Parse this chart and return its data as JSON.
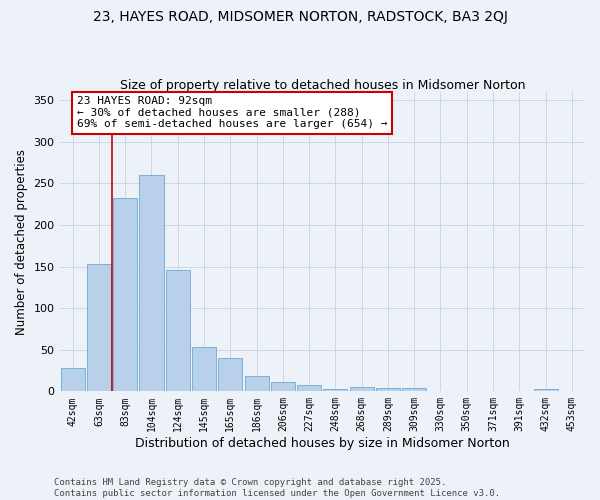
{
  "title": "23, HAYES ROAD, MIDSOMER NORTON, RADSTOCK, BA3 2QJ",
  "subtitle": "Size of property relative to detached houses in Midsomer Norton",
  "xlabel": "Distribution of detached houses by size in Midsomer Norton",
  "ylabel": "Number of detached properties",
  "footer": "Contains HM Land Registry data © Crown copyright and database right 2025.\nContains public sector information licensed under the Open Government Licence v3.0.",
  "categories": [
    "42sqm",
    "63sqm",
    "83sqm",
    "104sqm",
    "124sqm",
    "145sqm",
    "165sqm",
    "186sqm",
    "206sqm",
    "227sqm",
    "248sqm",
    "268sqm",
    "289sqm",
    "309sqm",
    "330sqm",
    "350sqm",
    "371sqm",
    "391sqm",
    "432sqm",
    "453sqm"
  ],
  "values": [
    28,
    153,
    233,
    260,
    146,
    53,
    40,
    18,
    11,
    8,
    3,
    5,
    4,
    4,
    0,
    0,
    0,
    0,
    3,
    0
  ],
  "bar_color": "#b8d0ea",
  "bar_edge_color": "#6aaad4",
  "grid_color": "#ccd6e8",
  "background_color": "#edf1f8",
  "annotation_text": "23 HAYES ROAD: 92sqm\n← 30% of detached houses are smaller (288)\n69% of semi-detached houses are larger (654) →",
  "vline_color": "#cc0000",
  "annotation_box_facecolor": "#ffffff",
  "annotation_box_edgecolor": "#cc0000",
  "ylim": [
    0,
    360
  ],
  "title_fontsize": 10,
  "subtitle_fontsize": 9,
  "ylabel_fontsize": 8.5,
  "xlabel_fontsize": 9,
  "tick_fontsize": 7,
  "annot_fontsize": 8,
  "footer_fontsize": 6.5
}
